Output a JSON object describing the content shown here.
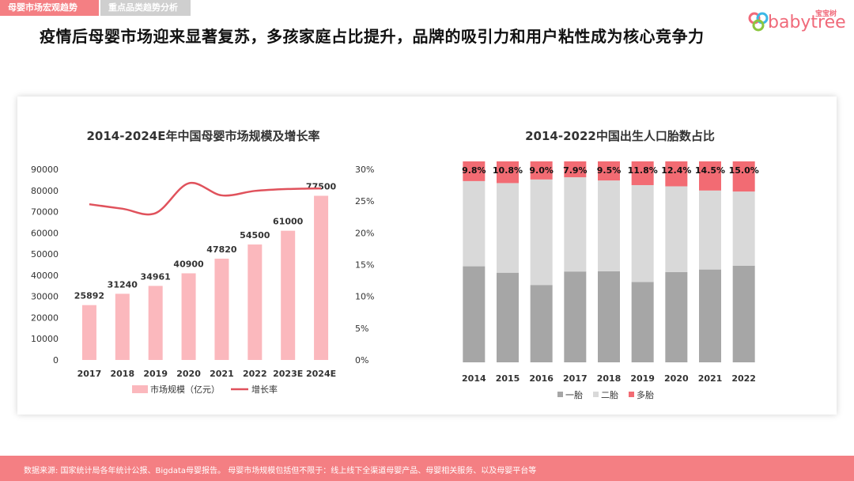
{
  "tabs": [
    {
      "label": "母婴市场宏观趋势",
      "active": true
    },
    {
      "label": "重点品类趋势分析",
      "active": false
    }
  ],
  "headline": "疫情后母婴市场迎来显著复苏，多孩家庭占比提升，品牌的吸引力和用户粘性成为核心竞争力",
  "logo": {
    "text": "babytree",
    "cn": "宝宝树"
  },
  "footer": {
    "text": "数据来源: 国家统计局各年统计公报、Bigdata母婴报告。 母婴市场规模包括但不限于：线上线下全渠道母婴产品、母婴相关服务、以及母婴平台等"
  },
  "colors": {
    "accent": "#f47f83",
    "bar": "#fbb8bd",
    "line": "#e0525c",
    "first": "#a6a6a6",
    "second": "#d9d9d9",
    "multi": "#f26b73"
  },
  "chart_data": [
    {
      "type": "bar",
      "title": "2014-2024E年中国母婴市场规模及增长率",
      "categories": [
        "2017",
        "2018",
        "2019",
        "2020",
        "2021",
        "2022",
        "2023E",
        "2024E"
      ],
      "series": [
        {
          "name": "市场规模（亿元）",
          "type": "bar",
          "axis": "left",
          "values": [
            25892,
            31240,
            34961,
            40900,
            47820,
            54500,
            61000,
            77500
          ]
        },
        {
          "name": "增长率",
          "type": "line",
          "axis": "right",
          "values": [
            24.5,
            23.8,
            23.1,
            27.8,
            25.9,
            26.6,
            26.9,
            27.0
          ]
        }
      ],
      "ylim": [
        0,
        90000
      ],
      "yticks": [
        "0",
        "10000",
        "20000",
        "30000",
        "40000",
        "50000",
        "60000",
        "70000",
        "80000",
        "90000"
      ],
      "y2lim": [
        0,
        30
      ],
      "y2ticks": [
        "0%",
        "5%",
        "10%",
        "15%",
        "20%",
        "25%",
        "30%"
      ],
      "legend": "bottom"
    },
    {
      "type": "bar",
      "stacked": true,
      "title": "2014-2022中国出生人口胎数占比",
      "categories": [
        "2014",
        "2015",
        "2016",
        "2017",
        "2018",
        "2019",
        "2020",
        "2021",
        "2022"
      ],
      "series": [
        {
          "name": "一胎",
          "values": [
            47.8,
            44.6,
            38.5,
            45.2,
            45.3,
            40.0,
            44.9,
            46.2,
            48.1
          ]
        },
        {
          "name": "二胎",
          "values": [
            42.4,
            44.6,
            52.5,
            46.9,
            45.2,
            48.2,
            42.7,
            39.3,
            36.9
          ]
        },
        {
          "name": "多胎",
          "values": [
            9.8,
            10.8,
            9.0,
            7.9,
            9.5,
            11.8,
            12.4,
            14.5,
            15.0
          ],
          "labels": [
            "9.8%",
            "10.8%",
            "9.0%",
            "7.9%",
            "9.5%",
            "11.8%",
            "12.4%",
            "14.5%",
            "15.0%"
          ]
        }
      ],
      "legend": "bottom"
    }
  ]
}
